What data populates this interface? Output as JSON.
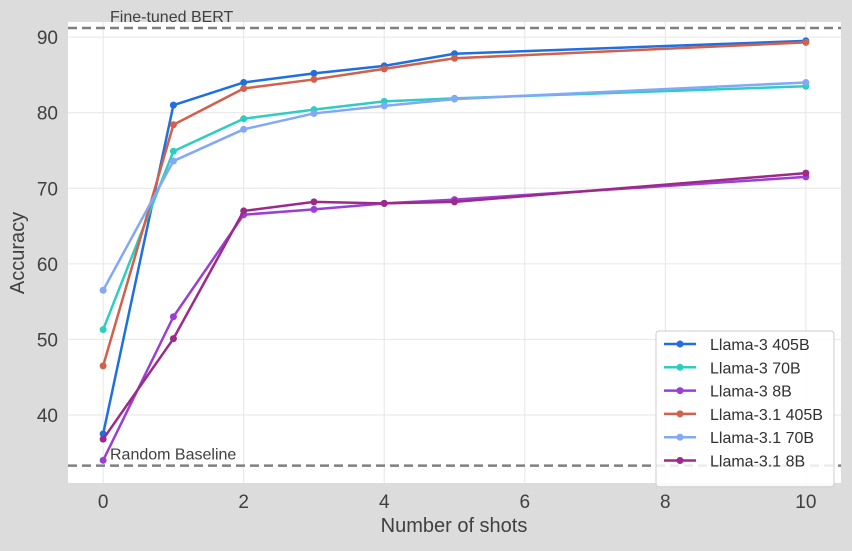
{
  "chart_data": {
    "type": "line",
    "xlabel": "Number of shots",
    "ylabel": "Accuracy",
    "xlim": [
      -0.5,
      10.5
    ],
    "ylim": [
      31,
      92
    ],
    "xticks": [
      0,
      2,
      4,
      6,
      8,
      10
    ],
    "yticks": [
      40,
      50,
      60,
      70,
      80,
      90
    ],
    "grid": true,
    "legend_position": "bottom-right",
    "x": [
      0,
      1,
      2,
      3,
      4,
      5,
      10
    ],
    "reference_lines": [
      {
        "label": "Fine-tuned BERT",
        "y": 91.2,
        "color": "#808080"
      },
      {
        "label": "Random Baseline",
        "y": 33.3,
        "color": "#808080"
      }
    ],
    "series": [
      {
        "name": "Llama-3 405B",
        "color": "#1f6fe0",
        "values": [
          37.5,
          81.0,
          84.0,
          85.2,
          86.2,
          87.8,
          89.5
        ]
      },
      {
        "name": "Llama-3 70B",
        "color": "#2ecdc0",
        "values": [
          51.3,
          74.9,
          79.2,
          80.4,
          81.5,
          81.9,
          83.5
        ]
      },
      {
        "name": "Llama-3 8B",
        "color": "#9b3fd4",
        "values": [
          34.0,
          53.0,
          66.5,
          67.2,
          68.0,
          68.5,
          71.5
        ]
      },
      {
        "name": "Llama-3.1 405B",
        "color": "#d2604a",
        "values": [
          46.5,
          78.4,
          83.2,
          84.4,
          85.8,
          87.2,
          89.3
        ]
      },
      {
        "name": "Llama-3.1 70B",
        "color": "#82a8f7",
        "values": [
          56.5,
          73.6,
          77.8,
          79.9,
          80.9,
          81.8,
          84.0
        ]
      },
      {
        "name": "Llama-3.1 8B",
        "color": "#9c2a88",
        "values": [
          36.8,
          50.1,
          67.0,
          68.2,
          68.0,
          68.2,
          72.0
        ]
      }
    ]
  }
}
